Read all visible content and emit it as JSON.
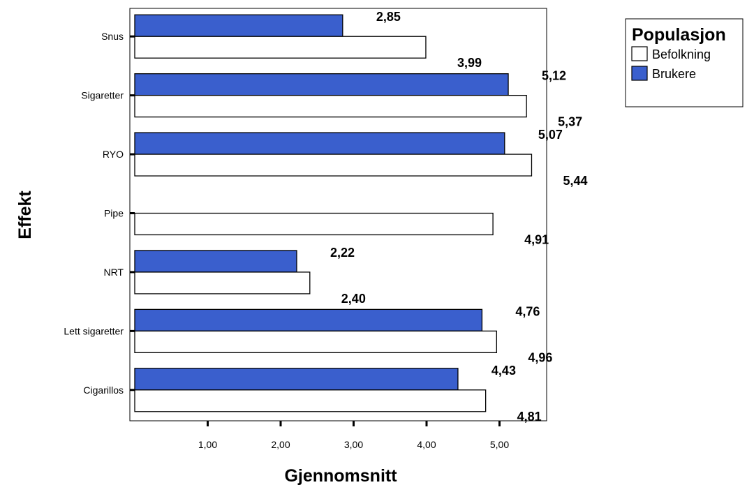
{
  "chart_data": {
    "type": "bar",
    "orientation": "horizontal",
    "categories": [
      "Snus",
      "Sigaretter",
      "RYO",
      "Pipe",
      "NRT",
      "Lett sigaretter",
      "Cigarillos"
    ],
    "series": [
      {
        "name": "Brukere",
        "color": "#3a5fcd",
        "values": [
          2.85,
          5.12,
          5.07,
          null,
          2.22,
          4.76,
          4.43
        ],
        "labels": [
          "2,85",
          "5,12",
          "5,07",
          "",
          "2,22",
          "4,76",
          "4,43"
        ]
      },
      {
        "name": "Befolkning",
        "color": "#ffffff",
        "values": [
          3.99,
          5.37,
          5.44,
          4.91,
          2.4,
          4.96,
          4.81
        ],
        "labels": [
          "3,99",
          "5,37",
          "5,44",
          "4,91",
          "2,40",
          "4,96",
          "4,81"
        ]
      }
    ],
    "xlabel": "Gjennomsnitt",
    "ylabel": "Effekt",
    "xlim": [
      0,
      5.7
    ],
    "xticks": [
      1,
      2,
      3,
      4,
      5
    ],
    "xtick_labels": [
      "1,00",
      "2,00",
      "3,00",
      "4,00",
      "5,00"
    ],
    "grid": false,
    "legend": {
      "title": "Populasjon",
      "placement": "top-right",
      "entries": [
        {
          "name": "Befolkning",
          "color": "#ffffff"
        },
        {
          "name": "Brukere",
          "color": "#3a5fcd"
        }
      ]
    }
  }
}
